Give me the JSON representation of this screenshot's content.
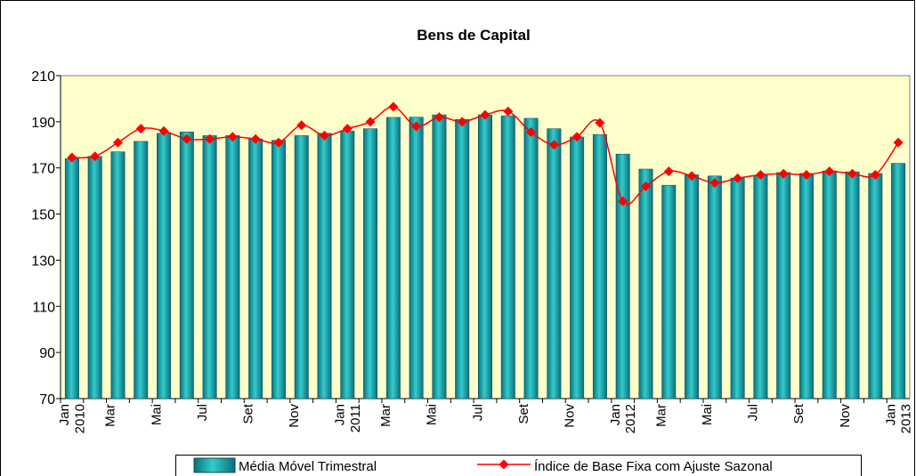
{
  "chart_data": {
    "type": "bar-line",
    "title": "Bens de Capital",
    "categories": [
      "Jan 2010",
      null,
      "Mar",
      null,
      "Mai",
      null,
      "Jul",
      null,
      "Set",
      null,
      "Nov",
      null,
      "Jan 2011",
      null,
      "Mar",
      null,
      "Mai",
      null,
      "Jul",
      null,
      "Set",
      null,
      "Nov",
      null,
      "Jan 2012",
      null,
      "Mar",
      null,
      "Mai",
      null,
      "Jul",
      null,
      "Set",
      null,
      "Nov",
      null,
      "Jan 2013"
    ],
    "series": [
      {
        "name": "Média Móvel Trimestral",
        "type": "bar",
        "color": "#33cccc",
        "values": [
          174,
          175,
          177,
          181.5,
          185,
          185.6,
          184,
          184,
          182.6,
          182,
          184,
          185,
          186,
          187,
          191.9,
          192,
          193,
          191,
          193,
          192.6,
          191.5,
          187,
          183.4,
          184.5,
          176,
          169.5,
          162.5,
          167,
          166.5,
          165.6,
          166.8,
          168,
          167.6,
          168.7,
          168.3,
          167.6,
          172
        ]
      },
      {
        "name": "Índice de Base Fixa com Ajuste Sazonal",
        "type": "line",
        "color": "#ff0000",
        "values": [
          174.5,
          175,
          181,
          187,
          186,
          182.5,
          182.5,
          183.5,
          182.5,
          181,
          188.5,
          184,
          187,
          190,
          196.5,
          188,
          192,
          190,
          193,
          194.5,
          185.5,
          180,
          183.5,
          189.5,
          155.5,
          162,
          168.5,
          166.5,
          163.5,
          165.5,
          167,
          167.5,
          167,
          168.5,
          167.5,
          167,
          181
        ]
      }
    ],
    "ylim": [
      70,
      210
    ],
    "yticks": [
      70,
      90,
      110,
      130,
      150,
      170,
      190,
      210
    ],
    "grid": false,
    "legend": "bottom",
    "plot_background": "#ffffcc"
  }
}
